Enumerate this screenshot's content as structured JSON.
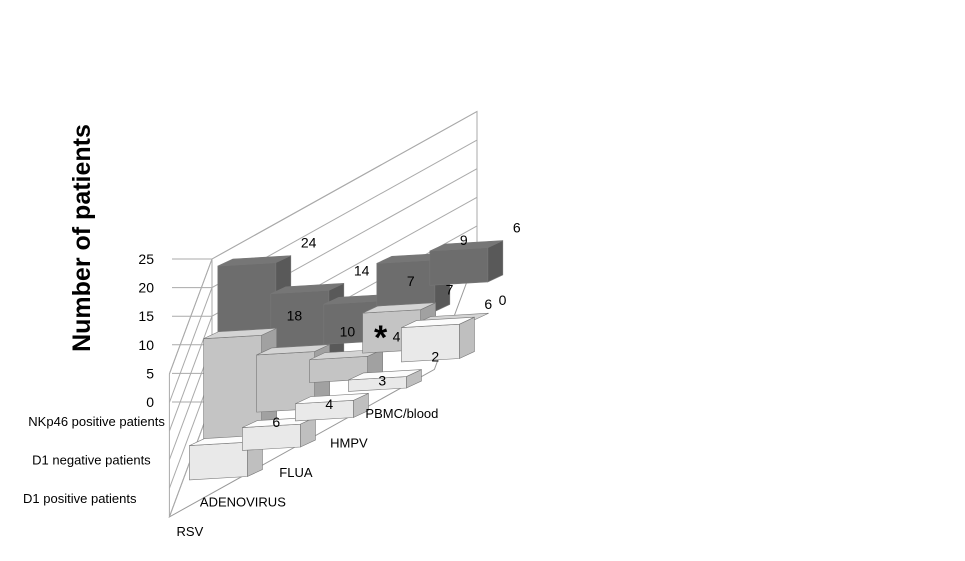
{
  "chart_data": {
    "type": "bar",
    "subtype": "3d-clustered",
    "title": "",
    "ylabel": "Number of patients",
    "xlabel": "",
    "ylim": [
      0,
      25
    ],
    "yticks": [
      0,
      5,
      10,
      15,
      20,
      25
    ],
    "grid": true,
    "categories": [
      "RSV",
      "ADENOVIRUS",
      "FLUA",
      "HMPV",
      "PBMC/blood"
    ],
    "series": [
      {
        "name": "NKp46 positive patients",
        "values": [
          24,
          14,
          7,
          9,
          6
        ],
        "color": "#6d6d6d"
      },
      {
        "name": "D1 negative patients",
        "values": [
          18,
          10,
          4,
          7,
          0
        ],
        "color": "#c4c4c4"
      },
      {
        "name": "D1 positive patients",
        "values": [
          6,
          4,
          3,
          2,
          6
        ],
        "color": "#e9e9e9"
      }
    ],
    "annotations": [
      {
        "text": "*",
        "category": "HMPV",
        "series": "D1 negative patients"
      }
    ]
  }
}
